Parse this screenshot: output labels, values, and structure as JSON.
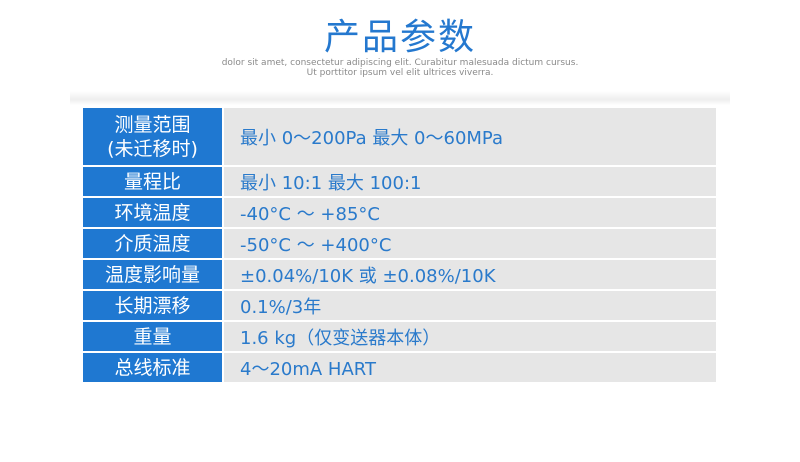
{
  "title": "产品参数",
  "subtitle": [
    "dolor sit amet, consectetur adipiscing elit. Curabitur malesuada dictum cursus.",
    "Ut porttitor ipsum vel elit ultrices viverra."
  ],
  "rows": [
    {
      "label": "测量范围\n(未迁移时)",
      "value": "最小 0～200Pa 最大 0～60MPa"
    },
    {
      "label": "量程比",
      "value": "最小 10:1 最大 100:1"
    },
    {
      "label": "环境温度",
      "value": "-40°C ～ +85°C"
    },
    {
      "label": "介质温度",
      "value": "-50°C ～ +400°C"
    },
    {
      "label": "温度影响量",
      "value": "±0.04%/10K 或 ±0.08%/10K"
    },
    {
      "label": "长期漂移",
      "value": "0.1%/3年"
    },
    {
      "label": "重量",
      "value": "1.6 kg（仅变送器本体）"
    },
    {
      "label": "总线标准",
      "value": "4～20mA HART"
    }
  ]
}
